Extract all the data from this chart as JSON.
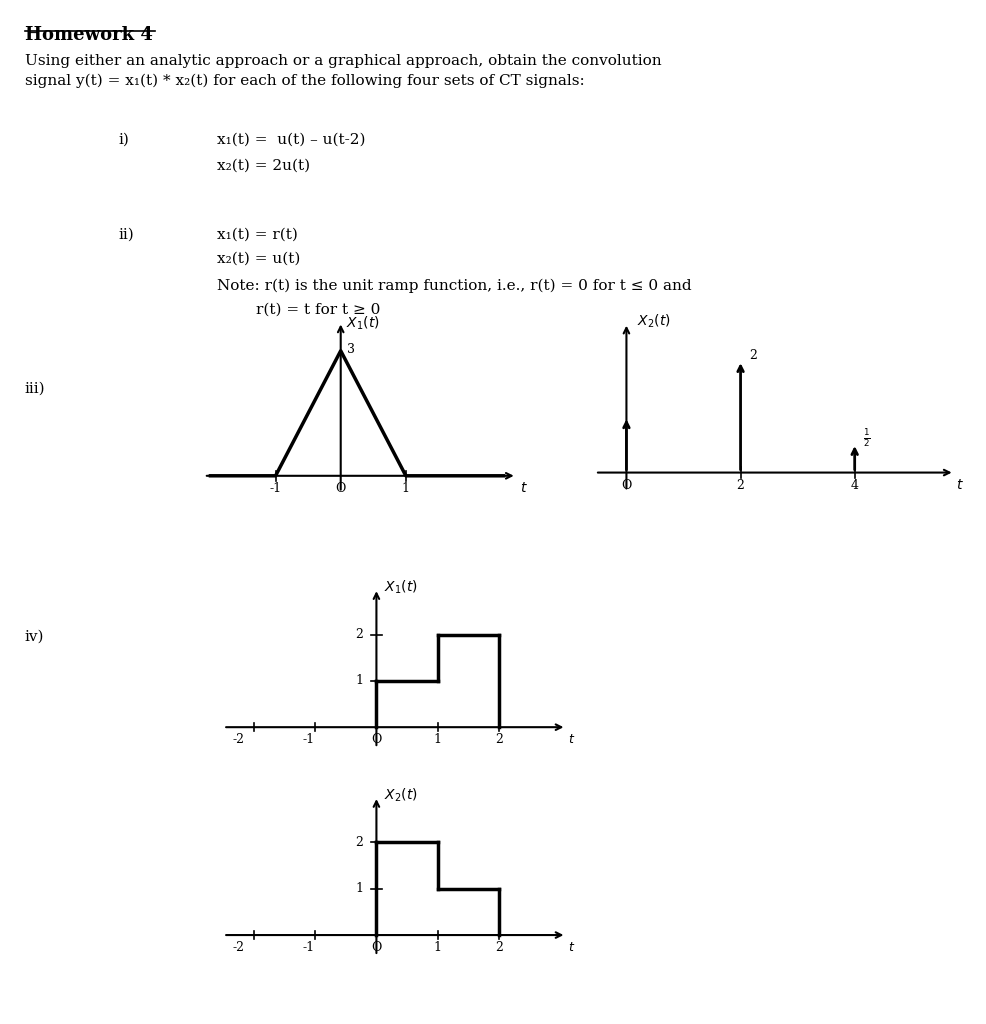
{
  "bg_color": "#ffffff",
  "title": "Homework 4",
  "intro_text": "Using either an analytic approach or a graphical approach, obtain the convolution\nsignal y(t) = x₁(t) * x₂(t) for each of the following four sets of CT signals:",
  "item_i_label": "i)",
  "item_i_line1": "x₁(t) =  u(t) – u(t-2)",
  "item_i_line2": "x₂(t) = 2u(t)",
  "item_ii_label": "ii)",
  "item_ii_line1": "x₁(t) = r(t)",
  "item_ii_line2": "x₂(t) = u(t)",
  "item_ii_line3": "Note: r(t) is the unit ramp function, i.e., r(t) = 0 for t ≤ 0 and",
  "item_ii_line4": "        r(t) = t for t ≥ 0",
  "item_iii_label": "iii)",
  "item_iv_label": "iv)"
}
